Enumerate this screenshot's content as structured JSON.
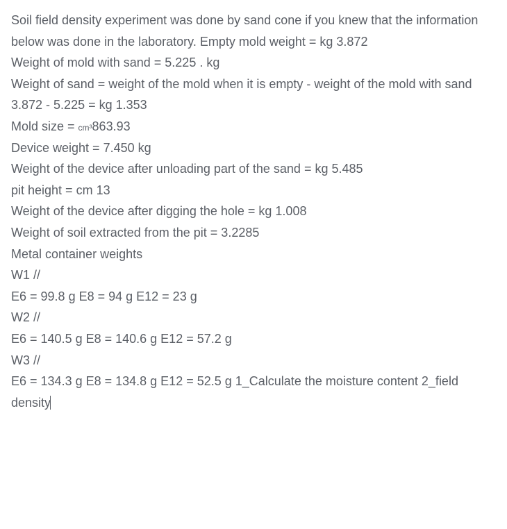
{
  "text_color": "#5b5f66",
  "background_color": "#ffffff",
  "font_family": "Arial, Helvetica, sans-serif",
  "font_size_pt": 14,
  "line_height": 1.7,
  "intro": "Soil field density experiment was done by sand cone if you knew that the information below was done in the laboratory.  Empty mold weight = kg 3.872",
  "lines": {
    "l1": " Weight of mold with sand = 5.225 .  kg",
    "l2": " Weight of sand = weight of the mold when it is empty - weight of the mold with sand",
    "l3": " 3.872 - 5.225 = kg 1.353",
    "l4a": " Mold size = ",
    "l4_unit": "cm³",
    "l4b": "863.93",
    "l5": " Device weight = 7.450 kg",
    "l6": " Weight of the device after unloading part of the sand = kg 5.485",
    "l7": " pit height = cm 13",
    "l8": " Weight of the device after digging the hole = kg 1.008",
    "l9": " Weight of soil extracted from the pit = 3.2285",
    "l10": " Metal container weights",
    "l11": " W1 //",
    "l12": " E6 = 99.8 g E8 = 94 g E12 = 23 g",
    "l13": " W2 //",
    "l14": " E6 = 140.5 g E8 = 140.6 g E12 = 57.2 g",
    "l15": " W3 //",
    "l16": " E6 = 134.3 g E8 = 134.8 g E12 = 52.5 g 1_Calculate the moisture content 2_field density"
  },
  "container_weights": {
    "W1": {
      "E6_g": 99.8,
      "E8_g": 94,
      "E12_g": 23
    },
    "W2": {
      "E6_g": 140.5,
      "E8_g": 140.6,
      "E12_g": 57.2
    },
    "W3": {
      "E6_g": 134.3,
      "E8_g": 134.8,
      "E12_g": 52.5
    }
  },
  "values": {
    "empty_mold_weight_kg": 3.872,
    "mold_with_sand_kg": 5.225,
    "sand_weight_kg": 1.353,
    "mold_size_cm3": 863.93,
    "device_weight_kg": 7.45,
    "device_after_unloading_kg": 5.485,
    "pit_height_cm": 13,
    "device_after_digging_kg": 1.008,
    "soil_extracted_kg": 3.2285
  }
}
